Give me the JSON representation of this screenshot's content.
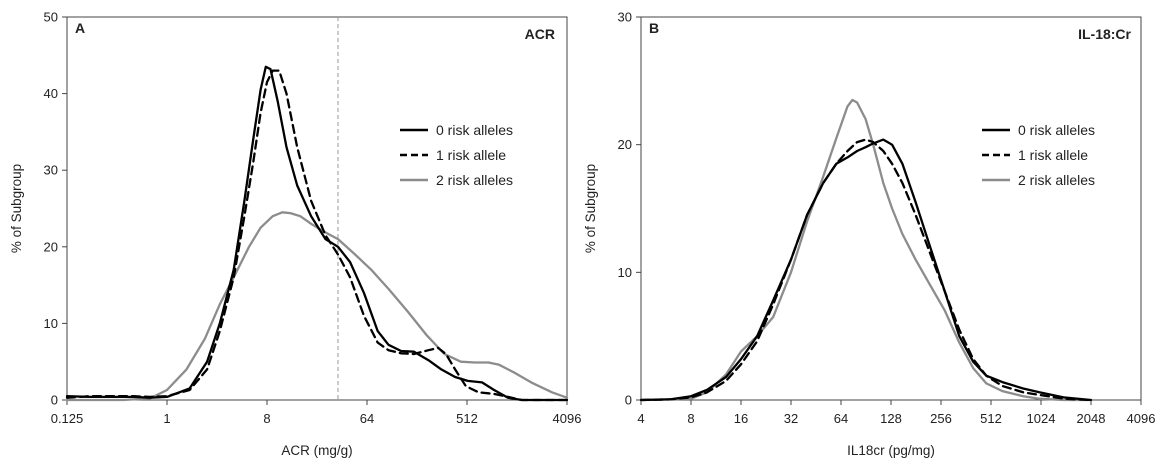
{
  "figure": {
    "panels": [
      {
        "letter": "A",
        "title": "ACR",
        "xlabel": "ACR (mg/g)",
        "ylabel": "% of Subgroup"
      },
      {
        "letter": "B",
        "title": "IL-18:Cr",
        "xlabel": "IL18cr (pg/mg)",
        "ylabel": "% of Subgroup"
      }
    ]
  },
  "chart_data": [
    {
      "type": "line",
      "title": "ACR",
      "panel_label": "A",
      "xlabel": "ACR (mg/g)",
      "ylabel": "% of Subgroup",
      "x_scale": "log2",
      "xlim": [
        0.125,
        4096
      ],
      "ylim": [
        0,
        50
      ],
      "x_ticks": [
        0.125,
        1,
        8,
        64,
        512,
        4096
      ],
      "x_tick_labels": [
        "0.125",
        "1",
        "8",
        "64",
        "512",
        "4096"
      ],
      "y_ticks": [
        0,
        10,
        20,
        30,
        40,
        50
      ],
      "y_tick_labels": [
        "0",
        "10",
        "20",
        "30",
        "40",
        "50"
      ],
      "reference_line": {
        "x": 35,
        "style": "dashed",
        "color": "#999999"
      },
      "legend_position": "right",
      "series": [
        {
          "name": "0 risk alleles",
          "style": "solid",
          "color": "#000000",
          "points": [
            [
              0.125,
              0.5
            ],
            [
              0.2,
              0.4
            ],
            [
              0.35,
              0.4
            ],
            [
              0.5,
              0.4
            ],
            [
              0.7,
              0.3
            ],
            [
              1,
              0.4
            ],
            [
              1.6,
              1.5
            ],
            [
              2.3,
              5
            ],
            [
              3,
              10
            ],
            [
              4,
              17
            ],
            [
              5,
              26
            ],
            [
              6,
              34
            ],
            [
              7,
              40.5
            ],
            [
              7.8,
              43.5
            ],
            [
              8.6,
              43.2
            ],
            [
              10,
              39
            ],
            [
              12,
              33
            ],
            [
              15,
              28
            ],
            [
              20,
              24
            ],
            [
              27,
              21
            ],
            [
              35,
              20
            ],
            [
              45,
              18
            ],
            [
              60,
              14
            ],
            [
              80,
              9
            ],
            [
              100,
              7.2
            ],
            [
              130,
              6.4
            ],
            [
              170,
              6.3
            ],
            [
              230,
              5.2
            ],
            [
              300,
              4
            ],
            [
              400,
              3
            ],
            [
              520,
              2.5
            ],
            [
              700,
              2.3
            ],
            [
              900,
              1.3
            ],
            [
              1200,
              0.3
            ],
            [
              1600,
              0
            ],
            [
              2500,
              0
            ],
            [
              4096,
              0
            ]
          ]
        },
        {
          "name": "1 risk allele",
          "style": "dashed",
          "color": "#000000",
          "points": [
            [
              0.125,
              0.3
            ],
            [
              0.2,
              0.5
            ],
            [
              0.35,
              0.5
            ],
            [
              0.5,
              0.5
            ],
            [
              0.7,
              0.4
            ],
            [
              1,
              0.5
            ],
            [
              1.6,
              1.3
            ],
            [
              2.3,
              4
            ],
            [
              3,
              9
            ],
            [
              4,
              16
            ],
            [
              5,
              24
            ],
            [
              6,
              31
            ],
            [
              7,
              37.5
            ],
            [
              8,
              41.5
            ],
            [
              9,
              43
            ],
            [
              10.3,
              43
            ],
            [
              12,
              40
            ],
            [
              15,
              33
            ],
            [
              20,
              26
            ],
            [
              27,
              21.5
            ],
            [
              35,
              19
            ],
            [
              45,
              16
            ],
            [
              60,
              11
            ],
            [
              80,
              7.5
            ],
            [
              100,
              6.5
            ],
            [
              130,
              6.1
            ],
            [
              170,
              6
            ],
            [
              230,
              6.5
            ],
            [
              280,
              6.8
            ],
            [
              330,
              6
            ],
            [
              400,
              4
            ],
            [
              500,
              1.8
            ],
            [
              650,
              1
            ],
            [
              900,
              0.8
            ],
            [
              1200,
              0.4
            ],
            [
              1600,
              0
            ],
            [
              2500,
              0
            ],
            [
              4096,
              0
            ]
          ]
        },
        {
          "name": "2 risk alleles",
          "style": "solid",
          "color": "#8c8c8c",
          "points": [
            [
              0.125,
              0
            ],
            [
              0.4,
              0
            ],
            [
              0.7,
              0.2
            ],
            [
              1,
              1.3
            ],
            [
              1.5,
              4
            ],
            [
              2.2,
              8
            ],
            [
              3,
              12.5
            ],
            [
              4,
              16
            ],
            [
              5.5,
              20
            ],
            [
              7,
              22.5
            ],
            [
              9,
              24
            ],
            [
              11,
              24.5
            ],
            [
              13,
              24.4
            ],
            [
              16,
              24
            ],
            [
              20,
              23
            ],
            [
              26,
              22
            ],
            [
              35,
              21
            ],
            [
              50,
              19
            ],
            [
              70,
              17
            ],
            [
              100,
              14.5
            ],
            [
              150,
              11.5
            ],
            [
              220,
              8.5
            ],
            [
              320,
              6
            ],
            [
              450,
              5
            ],
            [
              600,
              4.9
            ],
            [
              800,
              4.9
            ],
            [
              1000,
              4.6
            ],
            [
              1400,
              3.5
            ],
            [
              2000,
              2.2
            ],
            [
              3000,
              1
            ],
            [
              4096,
              0.3
            ]
          ]
        }
      ]
    },
    {
      "type": "line",
      "title": "IL-18:Cr",
      "panel_label": "B",
      "xlabel": "IL18cr (pg/mg)",
      "ylabel": "% of Subgroup",
      "x_scale": "log2",
      "xlim": [
        4,
        4096
      ],
      "ylim": [
        0,
        30
      ],
      "x_ticks": [
        4,
        8,
        16,
        32,
        64,
        128,
        256,
        512,
        1024,
        2048,
        4096
      ],
      "x_tick_labels": [
        "4",
        "8",
        "16",
        "32",
        "64",
        "128",
        "256",
        "512",
        "1024",
        "2048",
        "4096"
      ],
      "y_ticks": [
        0,
        10,
        20,
        30
      ],
      "y_tick_labels": [
        "0",
        "10",
        "20",
        "30"
      ],
      "legend_position": "right",
      "series": [
        {
          "name": "0 risk alleles",
          "style": "solid",
          "color": "#000000",
          "points": [
            [
              4,
              0
            ],
            [
              6,
              0.05
            ],
            [
              8,
              0.3
            ],
            [
              10,
              0.8
            ],
            [
              13,
              1.8
            ],
            [
              16,
              3.2
            ],
            [
              20,
              5
            ],
            [
              25,
              7.8
            ],
            [
              32,
              11
            ],
            [
              40,
              14.5
            ],
            [
              50,
              17
            ],
            [
              60,
              18.5
            ],
            [
              70,
              19
            ],
            [
              80,
              19.5
            ],
            [
              90,
              19.8
            ],
            [
              100,
              20.1
            ],
            [
              115,
              20.4
            ],
            [
              130,
              20
            ],
            [
              150,
              18.5
            ],
            [
              180,
              15.5
            ],
            [
              220,
              12
            ],
            [
              270,
              8.5
            ],
            [
              330,
              5
            ],
            [
              400,
              3
            ],
            [
              480,
              1.9
            ],
            [
              600,
              1.4
            ],
            [
              800,
              0.9
            ],
            [
              1000,
              0.6
            ],
            [
              1400,
              0.2
            ],
            [
              2048,
              0
            ]
          ]
        },
        {
          "name": "1 risk allele",
          "style": "dashed",
          "color": "#000000",
          "points": [
            [
              4,
              0
            ],
            [
              6,
              0.05
            ],
            [
              8,
              0.2
            ],
            [
              10,
              0.6
            ],
            [
              13,
              1.5
            ],
            [
              16,
              2.8
            ],
            [
              20,
              4.6
            ],
            [
              25,
              7.5
            ],
            [
              32,
              11
            ],
            [
              40,
              14.5
            ],
            [
              50,
              17
            ],
            [
              60,
              18.5
            ],
            [
              70,
              19.5
            ],
            [
              80,
              20.2
            ],
            [
              90,
              20.4
            ],
            [
              100,
              20.2
            ],
            [
              115,
              19.5
            ],
            [
              130,
              18.5
            ],
            [
              150,
              17
            ],
            [
              180,
              14.5
            ],
            [
              220,
              11.5
            ],
            [
              270,
              8.5
            ],
            [
              330,
              5.5
            ],
            [
              400,
              3.2
            ],
            [
              480,
              1.9
            ],
            [
              600,
              1.1
            ],
            [
              800,
              0.6
            ],
            [
              1000,
              0.4
            ],
            [
              1400,
              0.1
            ],
            [
              2048,
              0
            ]
          ]
        },
        {
          "name": "2 risk alleles",
          "style": "solid",
          "color": "#8c8c8c",
          "points": [
            [
              4,
              0
            ],
            [
              8,
              0.1
            ],
            [
              10,
              0.6
            ],
            [
              13,
              2
            ],
            [
              16,
              3.8
            ],
            [
              20,
              5
            ],
            [
              25,
              6.5
            ],
            [
              32,
              10
            ],
            [
              40,
              14
            ],
            [
              50,
              17.5
            ],
            [
              60,
              20.5
            ],
            [
              70,
              23
            ],
            [
              75,
              23.5
            ],
            [
              80,
              23.3
            ],
            [
              90,
              22
            ],
            [
              100,
              20
            ],
            [
              115,
              17
            ],
            [
              130,
              15
            ],
            [
              150,
              13
            ],
            [
              180,
              11
            ],
            [
              220,
              9
            ],
            [
              270,
              7
            ],
            [
              330,
              4.5
            ],
            [
              400,
              2.5
            ],
            [
              480,
              1.3
            ],
            [
              600,
              0.7
            ],
            [
              800,
              0.3
            ],
            [
              1000,
              0.1
            ],
            [
              1400,
              0
            ],
            [
              2048,
              0
            ]
          ]
        }
      ]
    }
  ]
}
